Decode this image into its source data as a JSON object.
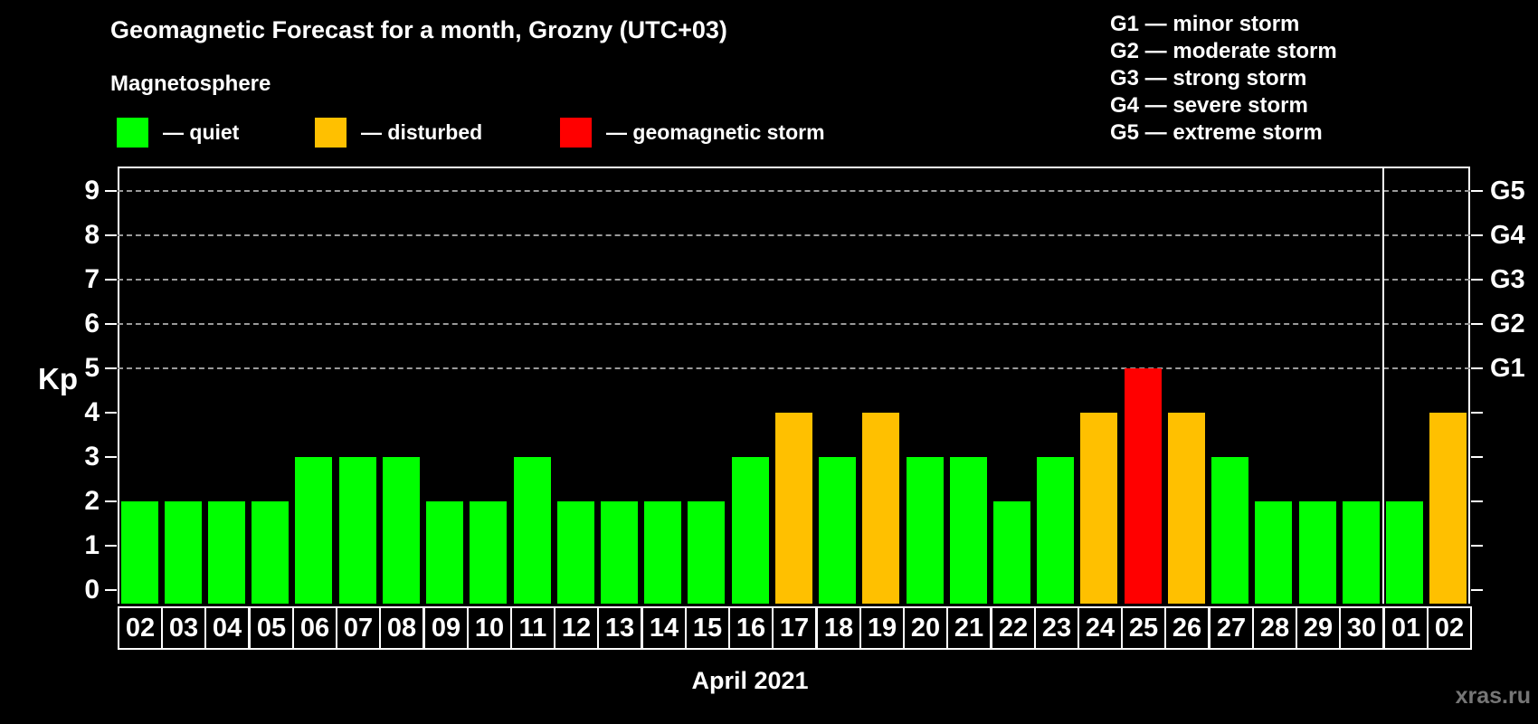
{
  "legend": {
    "heading": "Magnetosphere",
    "items": [
      {
        "id": "quiet",
        "label": "— quiet",
        "color": "#00ff00"
      },
      {
        "id": "disturbed",
        "label": "— disturbed",
        "color": "#ffc000"
      },
      {
        "id": "storm",
        "label": "— geomagnetic storm",
        "color": "#ff0000"
      }
    ]
  },
  "g_legend": [
    "G1 — minor storm",
    "G2 — moderate storm",
    "G3 — strong storm",
    "G4 — severe storm",
    "G5 — extreme storm"
  ],
  "watermark": "xras.ru",
  "chart_data": {
    "type": "bar",
    "title": "Geomagnetic Forecast for a month, Grozny (UTC+03)",
    "ylabel": "Kp",
    "xlabel": "April 2021",
    "ylim": [
      0,
      9
    ],
    "yticks": [
      0,
      1,
      2,
      3,
      4,
      5,
      6,
      7,
      8,
      9
    ],
    "grid": "horizontal dashed gridlines at Kp 5-9",
    "legend_position": "top-left",
    "right_axis": [
      {
        "kp": 5,
        "label": "G1"
      },
      {
        "kp": 6,
        "label": "G2"
      },
      {
        "kp": 7,
        "label": "G3"
      },
      {
        "kp": 8,
        "label": "G4"
      },
      {
        "kp": 9,
        "label": "G5"
      }
    ],
    "categories": [
      "02",
      "03",
      "04",
      "05",
      "06",
      "07",
      "08",
      "09",
      "10",
      "11",
      "12",
      "13",
      "14",
      "15",
      "16",
      "17",
      "18",
      "19",
      "20",
      "21",
      "22",
      "23",
      "24",
      "25",
      "26",
      "27",
      "28",
      "29",
      "30",
      "01",
      "02"
    ],
    "values": [
      2,
      2,
      2,
      2,
      3,
      3,
      3,
      2,
      2,
      3,
      2,
      2,
      2,
      2,
      3,
      4,
      3,
      4,
      3,
      3,
      2,
      3,
      4,
      5,
      4,
      3,
      2,
      2,
      2,
      2,
      4
    ],
    "statuses": [
      "quiet",
      "quiet",
      "quiet",
      "quiet",
      "quiet",
      "quiet",
      "quiet",
      "quiet",
      "quiet",
      "quiet",
      "quiet",
      "quiet",
      "quiet",
      "quiet",
      "quiet",
      "disturbed",
      "quiet",
      "disturbed",
      "quiet",
      "quiet",
      "quiet",
      "quiet",
      "disturbed",
      "storm",
      "disturbed",
      "quiet",
      "quiet",
      "quiet",
      "quiet",
      "quiet",
      "disturbed"
    ],
    "colors": {
      "quiet": "#00ff00",
      "disturbed": "#ffc000",
      "storm": "#ff0000"
    },
    "month_separator_after_index": 28
  }
}
